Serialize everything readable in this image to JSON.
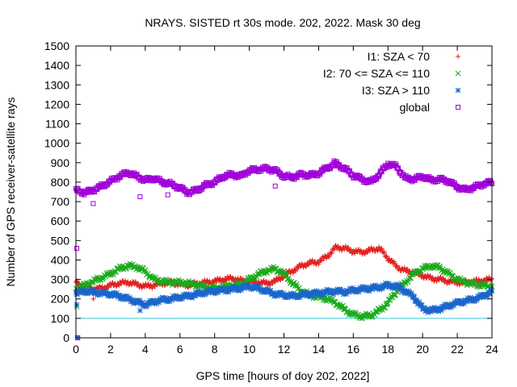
{
  "chart_data": {
    "type": "scatter",
    "title": "NRAYS. SISTED rt 30s mode. 202, 2022. Mask 30 deg",
    "xlabel": "GPS time [hours of doy 202, 2022]",
    "ylabel": "Number of GPS receiver-satellite rays",
    "xlim": [
      0,
      24
    ],
    "ylim": [
      0,
      1500
    ],
    "xticks": [
      "0",
      "2",
      "4",
      "6",
      "8",
      "10",
      "12",
      "14",
      "16",
      "18",
      "20",
      "22",
      "24"
    ],
    "yticks": [
      "0",
      "100",
      "200",
      "300",
      "400",
      "500",
      "600",
      "700",
      "800",
      "900",
      "1000",
      "1100",
      "1200",
      "1300",
      "1400",
      "1500"
    ],
    "reference_line": {
      "y": 100,
      "color": "#33ccdd"
    },
    "legend_position": "top-right",
    "series": [
      {
        "name": "I1: SZA < 70",
        "marker": "+",
        "color": "#e32020",
        "x": [
          0,
          0.5,
          1,
          1.5,
          2,
          2.5,
          3,
          3.5,
          4,
          4.5,
          5,
          5.5,
          6,
          6.5,
          7,
          7.5,
          8,
          8.5,
          9,
          9.5,
          10,
          10.5,
          11,
          11.5,
          12,
          12.5,
          13,
          13.5,
          14,
          14.5,
          15,
          15.5,
          16,
          16.5,
          17,
          17.5,
          18,
          18.5,
          19,
          19.5,
          20,
          20.5,
          21,
          21.5,
          22,
          22.5,
          23,
          23.5,
          24
        ],
        "y": [
          280,
          265,
          250,
          255,
          270,
          280,
          285,
          275,
          265,
          270,
          280,
          285,
          275,
          270,
          280,
          285,
          290,
          300,
          305,
          295,
          290,
          285,
          280,
          290,
          320,
          345,
          370,
          385,
          390,
          420,
          465,
          460,
          445,
          440,
          450,
          460,
          410,
          365,
          345,
          335,
          320,
          305,
          300,
          290,
          285,
          285,
          290,
          295,
          300
        ]
      },
      {
        "name": "I2: 70 <= SZA <= 110",
        "marker": "x",
        "color": "#1aaa1a",
        "x": [
          0,
          0.5,
          1,
          1.5,
          2,
          2.5,
          3,
          3.5,
          4,
          4.5,
          5,
          5.5,
          6,
          6.5,
          7,
          7.5,
          8,
          8.5,
          9,
          9.5,
          10,
          10.5,
          11,
          11.5,
          12,
          12.5,
          13,
          13.5,
          14,
          14.5,
          15,
          15.5,
          16,
          16.5,
          17,
          17.5,
          18,
          18.5,
          19,
          19.5,
          20,
          20.5,
          21,
          21.5,
          22,
          22.5,
          23,
          23.5,
          24
        ],
        "y": [
          250,
          270,
          290,
          310,
          330,
          355,
          370,
          365,
          340,
          300,
          290,
          285,
          285,
          280,
          270,
          260,
          255,
          260,
          270,
          275,
          300,
          325,
          345,
          355,
          330,
          280,
          240,
          220,
          210,
          200,
          180,
          145,
          120,
          110,
          115,
          140,
          180,
          240,
          285,
          330,
          355,
          370,
          360,
          330,
          300,
          285,
          275,
          270,
          265
        ]
      },
      {
        "name": "I3: SZA > 110",
        "marker": "*",
        "color": "#1a66cc",
        "x": [
          0,
          0.5,
          1,
          1.5,
          2,
          2.5,
          3,
          3.5,
          4,
          4.5,
          5,
          5.5,
          6,
          6.5,
          7,
          7.5,
          8,
          8.5,
          9,
          9.5,
          10,
          10.5,
          11,
          11.5,
          12,
          12.5,
          13,
          13.5,
          14,
          14.5,
          15,
          15.5,
          16,
          16.5,
          17,
          17.5,
          18,
          18.5,
          19,
          19.5,
          20,
          20.5,
          21,
          21.5,
          22,
          22.5,
          23,
          23.5,
          24
        ],
        "y": [
          230,
          240,
          235,
          230,
          225,
          215,
          200,
          185,
          170,
          185,
          195,
          200,
          210,
          215,
          225,
          235,
          240,
          245,
          250,
          255,
          265,
          255,
          240,
          225,
          220,
          215,
          220,
          225,
          230,
          235,
          240,
          235,
          245,
          250,
          255,
          260,
          270,
          265,
          240,
          210,
          150,
          140,
          150,
          165,
          180,
          190,
          200,
          215,
          240
        ]
      },
      {
        "name": "global",
        "marker": "square",
        "color": "#a000d8",
        "x": [
          0,
          0.5,
          1,
          1.5,
          2,
          2.5,
          3,
          3.5,
          4,
          4.5,
          5,
          5.5,
          6,
          6.5,
          7,
          7.5,
          8,
          8.5,
          9,
          9.5,
          10,
          10.5,
          11,
          11.5,
          12,
          12.5,
          13,
          13.5,
          14,
          14.5,
          15,
          15.5,
          16,
          16.5,
          17,
          17.5,
          18,
          18.5,
          19,
          19.5,
          20,
          20.5,
          21,
          21.5,
          22,
          22.5,
          23,
          23.5,
          24
        ],
        "y": [
          760,
          745,
          760,
          780,
          805,
          830,
          850,
          830,
          810,
          820,
          800,
          790,
          770,
          745,
          760,
          785,
          800,
          830,
          840,
          830,
          860,
          865,
          870,
          860,
          830,
          825,
          840,
          835,
          845,
          875,
          895,
          870,
          835,
          815,
          800,
          840,
          895,
          880,
          820,
          815,
          830,
          810,
          815,
          805,
          775,
          760,
          775,
          790,
          800
        ]
      }
    ],
    "outliers": {
      "I1: SZA < 70": [
        [
          0.1,
          285
        ],
        [
          1.0,
          200
        ]
      ],
      "I2: 70 <= SZA <= 110": [
        [
          0.05,
          160
        ]
      ],
      "I3: SZA > 110": [
        [
          0.05,
          170
        ],
        [
          3.7,
          140
        ],
        [
          0.1,
          0
        ]
      ],
      "global": [
        [
          0.05,
          460
        ],
        [
          0.1,
          0
        ],
        [
          1.0,
          690
        ],
        [
          3.7,
          725
        ],
        [
          5.3,
          735
        ],
        [
          11.5,
          780
        ],
        [
          14.9,
          910
        ]
      ]
    }
  }
}
